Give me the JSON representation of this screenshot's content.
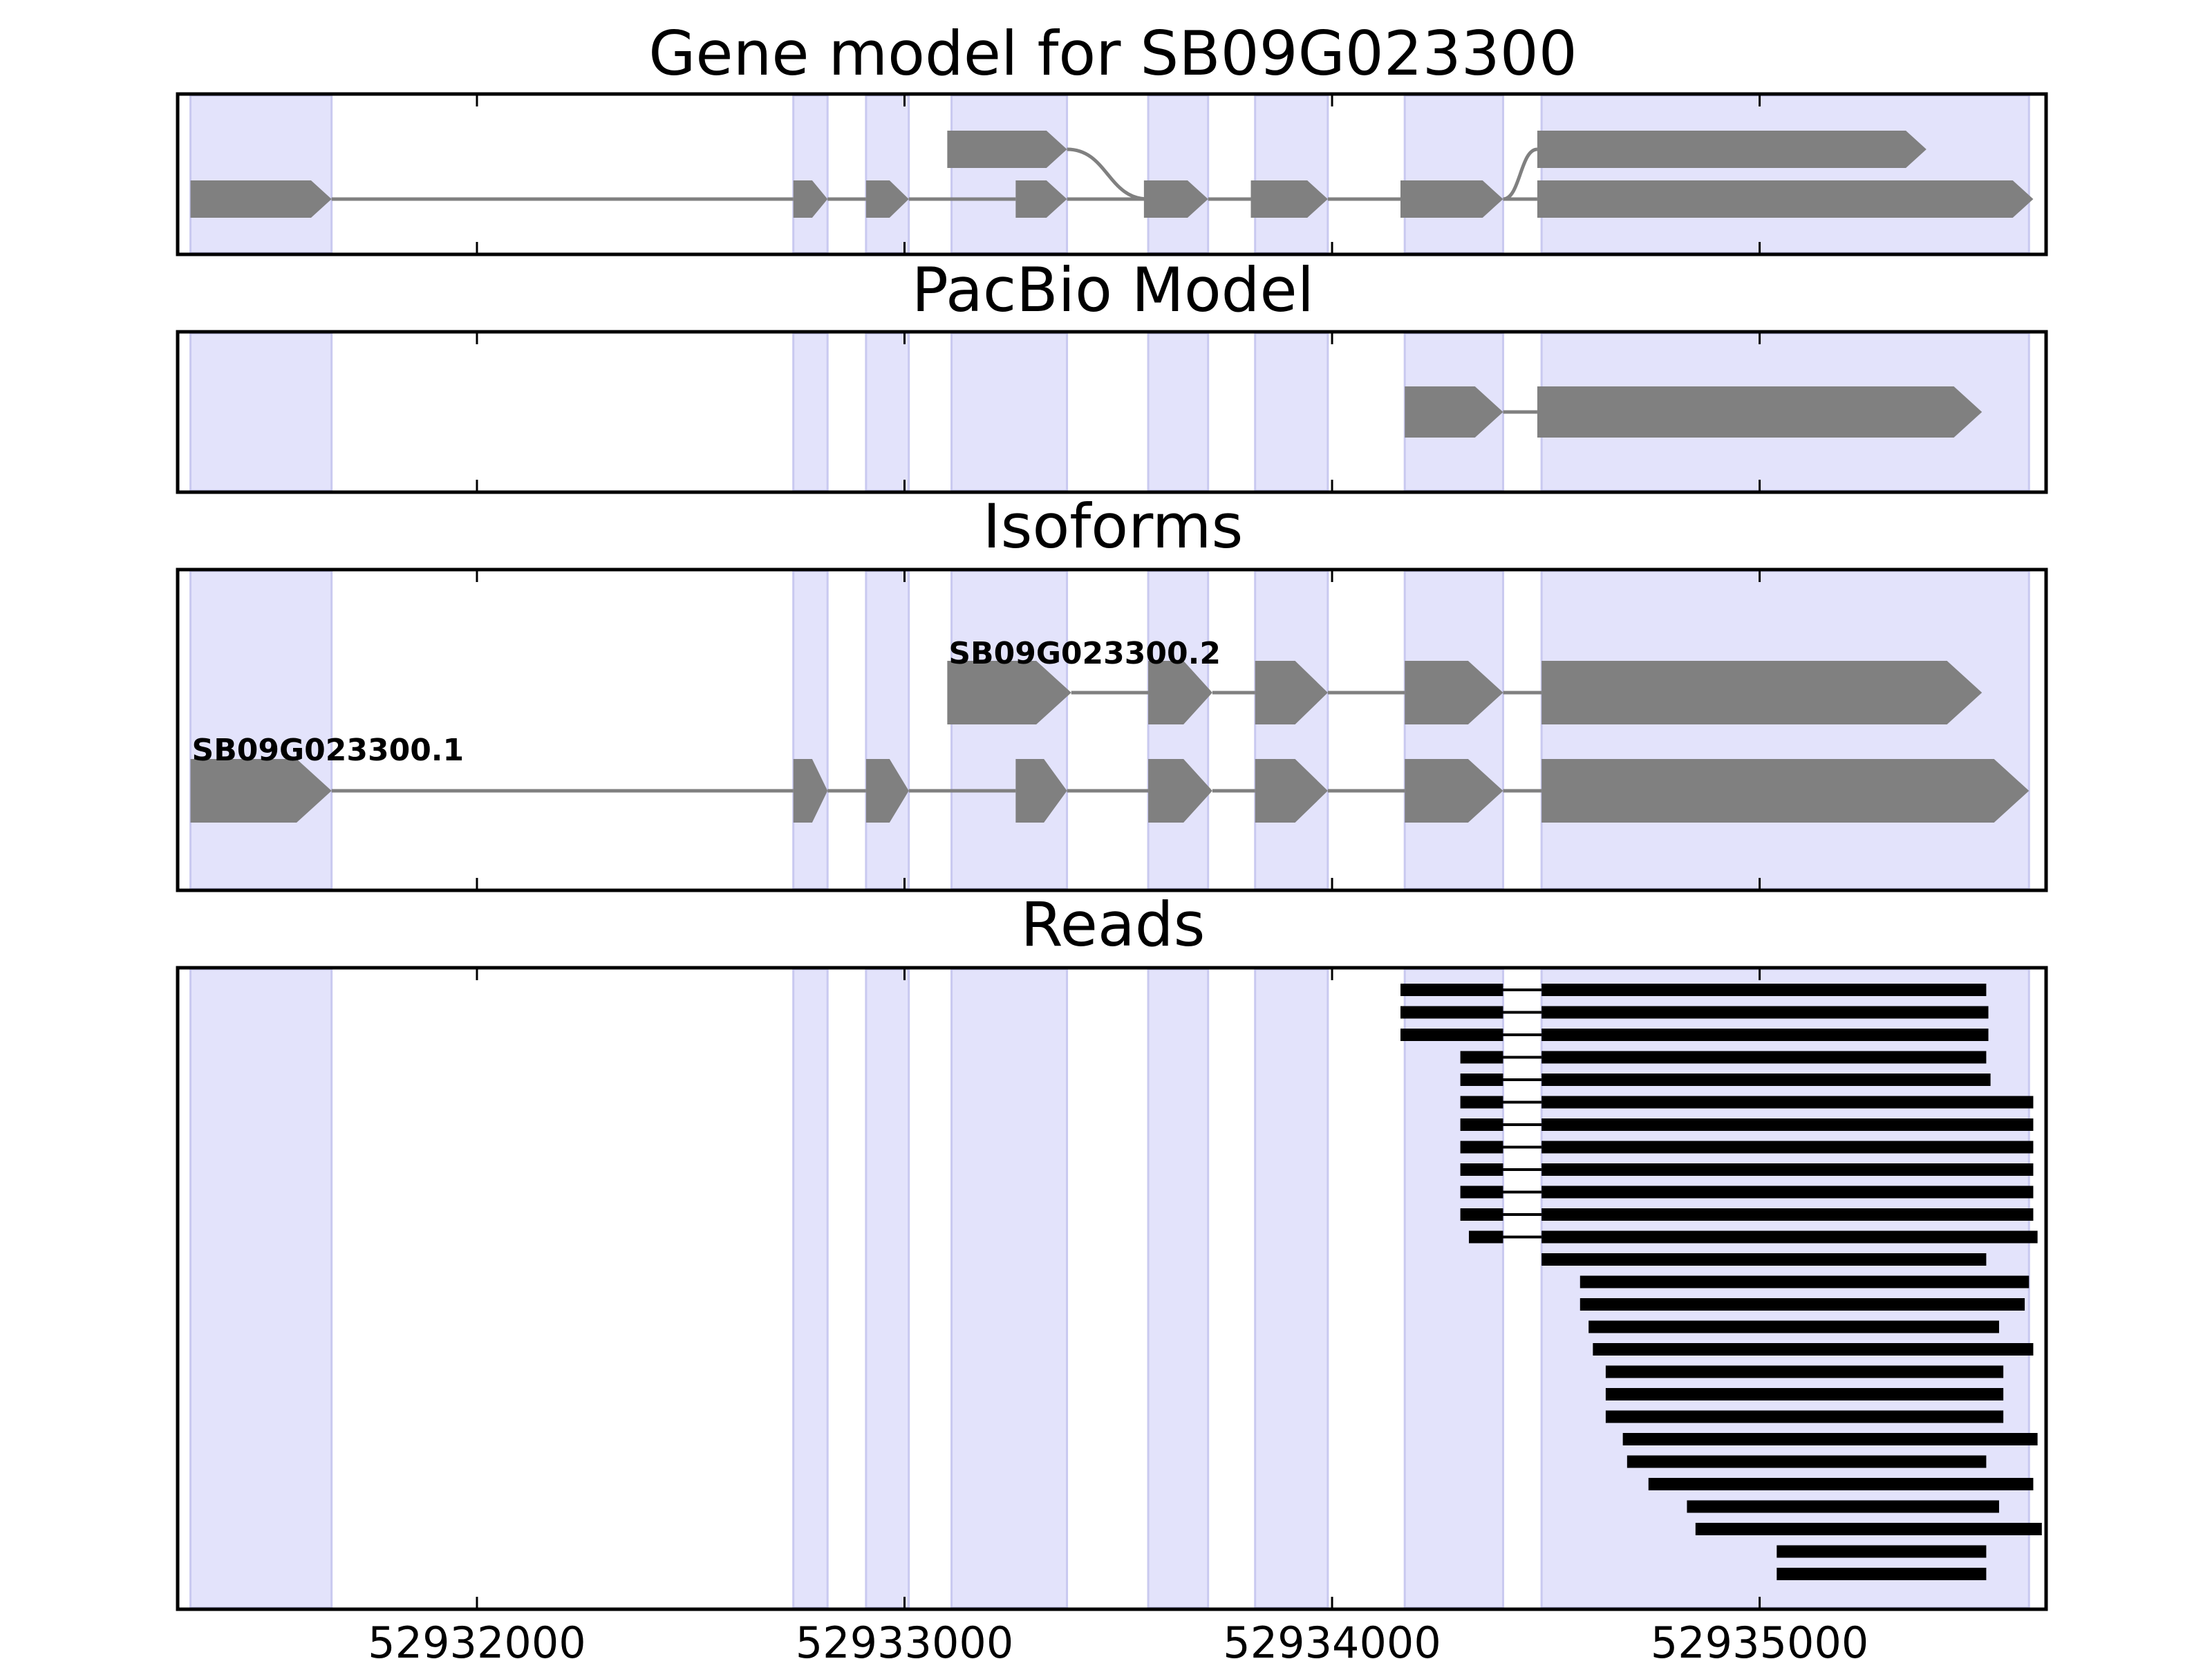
{
  "figure": {
    "panel_titles": [
      "Gene model for SB09G023300",
      "PacBio Model",
      "Isoforms",
      "Reads"
    ]
  },
  "chart_data": {
    "type": "gene-track",
    "xlim": [
      52931300,
      52935670
    ],
    "xticks": [
      52932000,
      52933000,
      52934000,
      52935000
    ],
    "xtick_labels": [
      "52932000",
      "52933000",
      "52934000",
      "52935000"
    ],
    "colors": {
      "band": "#e3e3fb",
      "band_edge": "#c9c9f0",
      "feature": "#808080",
      "read": "#000000"
    },
    "exon_bands": [
      [
        52931330,
        52931660
      ],
      [
        52932740,
        52932820
      ],
      [
        52932910,
        52933010
      ],
      [
        52933110,
        52933380
      ],
      [
        52933570,
        52933710
      ],
      [
        52933820,
        52933990
      ],
      [
        52934170,
        52934400
      ],
      [
        52934490,
        52935630
      ]
    ],
    "gene_model": {
      "top": {
        "exons": [
          [
            52933100,
            52933380
          ],
          [
            52934480,
            52935390
          ]
        ],
        "connect_to_bottom": [
          [
            52933380,
            52933570
          ],
          [
            52934400,
            52934480
          ]
        ]
      },
      "bottom": {
        "exons": [
          [
            52931330,
            52931660
          ],
          [
            52932740,
            52932820
          ],
          [
            52932910,
            52933010
          ],
          [
            52933260,
            52933380
          ],
          [
            52933560,
            52933710
          ],
          [
            52933810,
            52933990
          ],
          [
            52934160,
            52934400
          ],
          [
            52934480,
            52935640
          ]
        ]
      }
    },
    "pacbio_model": [
      [
        52934170,
        52934400
      ],
      [
        52934480,
        52935520
      ]
    ],
    "isoforms": [
      {
        "name": "SB09G023300.2",
        "exons": [
          [
            52933100,
            52933390
          ],
          [
            52933570,
            52933720
          ],
          [
            52933820,
            52933990
          ],
          [
            52934170,
            52934400
          ],
          [
            52934490,
            52935520
          ]
        ]
      },
      {
        "name": "SB09G023300.1",
        "exons": [
          [
            52931330,
            52931660
          ],
          [
            52932740,
            52932820
          ],
          [
            52932910,
            52933010
          ],
          [
            52933260,
            52933380
          ],
          [
            52933570,
            52933720
          ],
          [
            52933820,
            52933990
          ],
          [
            52934170,
            52934400
          ],
          [
            52934490,
            52935630
          ]
        ]
      }
    ],
    "reads": [
      [
        [
          52934160,
          52934400
        ],
        [
          52934490,
          52935530
        ]
      ],
      [
        [
          52934160,
          52934400
        ],
        [
          52934490,
          52935535
        ]
      ],
      [
        [
          52934160,
          52934400
        ],
        [
          52934490,
          52935535
        ]
      ],
      [
        [
          52934300,
          52934400
        ],
        [
          52934490,
          52935530
        ]
      ],
      [
        [
          52934300,
          52934400
        ],
        [
          52934490,
          52935540
        ]
      ],
      [
        [
          52934300,
          52934400
        ],
        [
          52934490,
          52935640
        ]
      ],
      [
        [
          52934300,
          52934400
        ],
        [
          52934490,
          52935640
        ]
      ],
      [
        [
          52934300,
          52934400
        ],
        [
          52934490,
          52935640
        ]
      ],
      [
        [
          52934300,
          52934400
        ],
        [
          52934490,
          52935640
        ]
      ],
      [
        [
          52934300,
          52934400
        ],
        [
          52934490,
          52935640
        ]
      ],
      [
        [
          52934300,
          52934400
        ],
        [
          52934490,
          52935640
        ]
      ],
      [
        [
          52934320,
          52934400
        ],
        [
          52934490,
          52935650
        ]
      ],
      [
        [
          52934490,
          52935530
        ]
      ],
      [
        [
          52934580,
          52935630
        ]
      ],
      [
        [
          52934580,
          52935620
        ]
      ],
      [
        [
          52934600,
          52935560
        ]
      ],
      [
        [
          52934610,
          52935640
        ]
      ],
      [
        [
          52934640,
          52935570
        ]
      ],
      [
        [
          52934640,
          52935570
        ]
      ],
      [
        [
          52934640,
          52935570
        ]
      ],
      [
        [
          52934680,
          52935650
        ]
      ],
      [
        [
          52934690,
          52935530
        ]
      ],
      [
        [
          52934740,
          52935640
        ]
      ],
      [
        [
          52934830,
          52935560
        ]
      ],
      [
        [
          52934850,
          52935660
        ]
      ],
      [
        [
          52935040,
          52935530
        ]
      ],
      [
        [
          52935040,
          52935530
        ]
      ]
    ]
  }
}
